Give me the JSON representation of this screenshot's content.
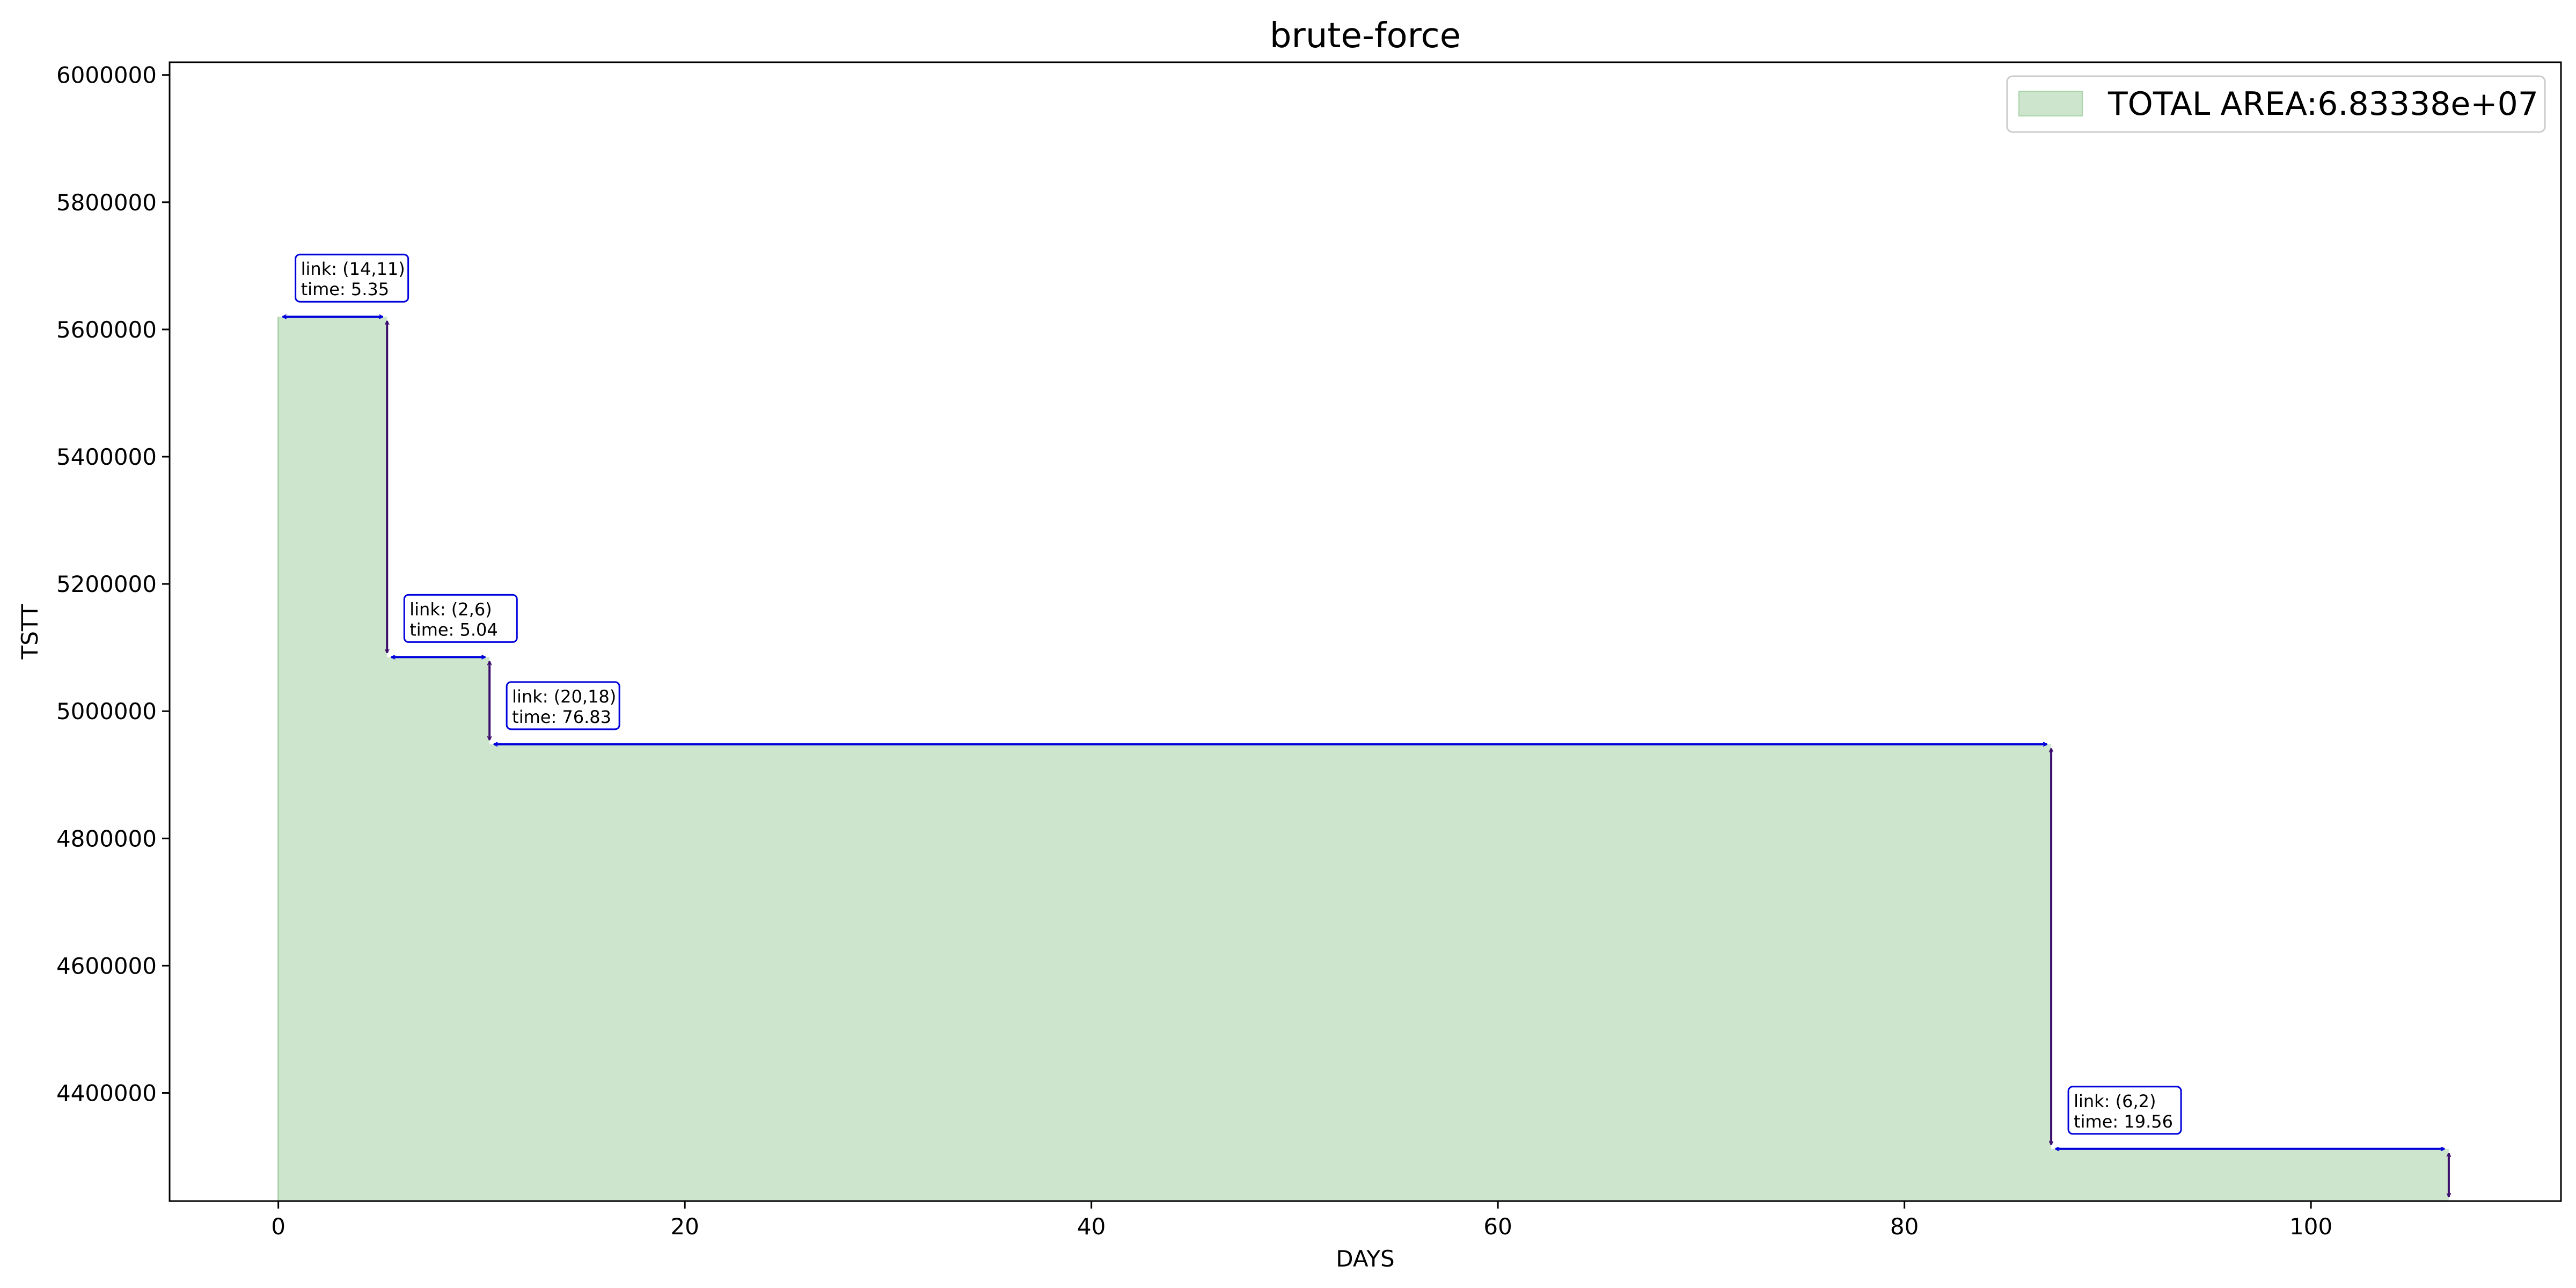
{
  "chart_data": {
    "type": "area",
    "title": "brute-force",
    "xlabel": "DAYS",
    "ylabel": "TSTT",
    "xlim": [
      -5.35,
      112.3
    ],
    "ylim": [
      4230000,
      6020000
    ],
    "x_ticks": [
      0,
      20,
      40,
      60,
      80,
      100
    ],
    "y_ticks": [
      4400000,
      4600000,
      4800000,
      5000000,
      5200000,
      5400000,
      5600000,
      5800000,
      6000000
    ],
    "grid": false,
    "legend": {
      "position": "top-right",
      "label": "TOTAL AREA:6.83338e+07"
    },
    "colors": {
      "fill": "#cde5cd",
      "fill_edge": "#a9d3a9",
      "arrow": "#0000dd",
      "drop_arrow": "#3c0f6e",
      "box_edge": "#0000dd"
    },
    "steps": [
      {
        "x_start": 0,
        "x_end": 5.35,
        "y": 5620000,
        "link": "link: (14,11)",
        "time": "time: 5.35"
      },
      {
        "x_start": 5.35,
        "x_end": 10.39,
        "y": 5085000,
        "link": "link: (2,6)",
        "time": "time: 5.04"
      },
      {
        "x_start": 10.39,
        "x_end": 87.22,
        "y": 4948000,
        "link": "link: (20,18)",
        "time": "time: 76.83"
      },
      {
        "x_start": 87.22,
        "x_end": 106.78,
        "y": 4312000,
        "link": "link: (6,2)",
        "time": "time: 19.56"
      }
    ],
    "final_y": 4230000
  }
}
